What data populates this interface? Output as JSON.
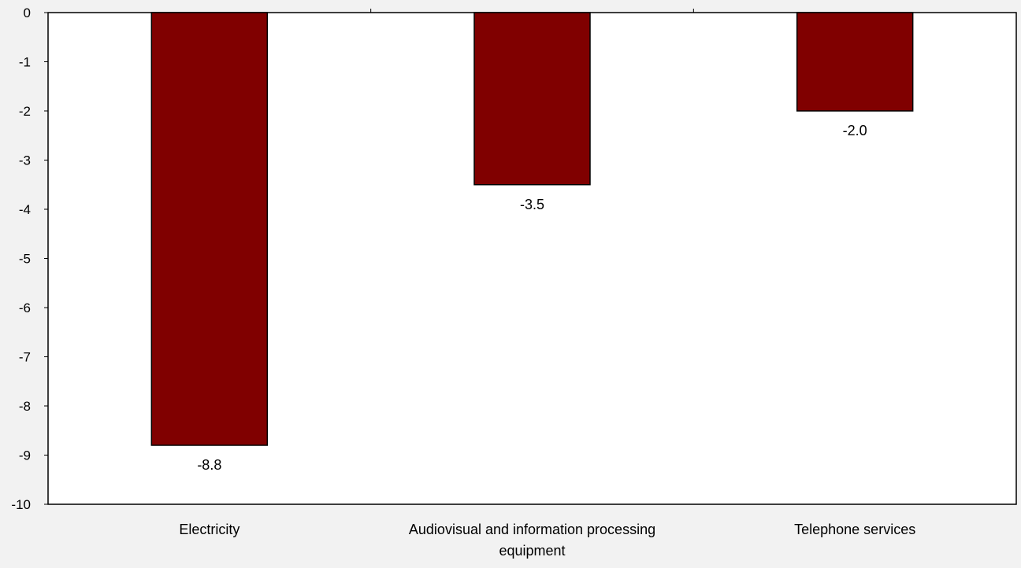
{
  "chart_data": {
    "type": "bar",
    "title": "",
    "xlabel": "",
    "ylabel": "",
    "categories": [
      "Electricity",
      "Audiovisual and information processing equipment",
      "Telephone services"
    ],
    "category_label_lines": [
      [
        "Electricity"
      ],
      [
        "Audiovisual and information processing",
        "equipment"
      ],
      [
        "Telephone services"
      ]
    ],
    "values": [
      -8.8,
      -3.5,
      -2.0
    ],
    "data_labels": [
      "-8.8",
      "-3.5",
      "-2.0"
    ],
    "ylim": [
      -10,
      0
    ],
    "yticks": [
      0,
      -1,
      -2,
      -3,
      -4,
      -5,
      -6,
      -7,
      -8,
      -9,
      -10
    ],
    "ytick_labels": [
      "0",
      "-1",
      "-2",
      "-3",
      "-4",
      "-5",
      "-6",
      "-7",
      "-8",
      "-9",
      "-10"
    ],
    "grid": false,
    "legend": "none",
    "bar_color": "#800000",
    "background_color": "#f2f2f2",
    "plot_background_color": "#ffffff"
  }
}
